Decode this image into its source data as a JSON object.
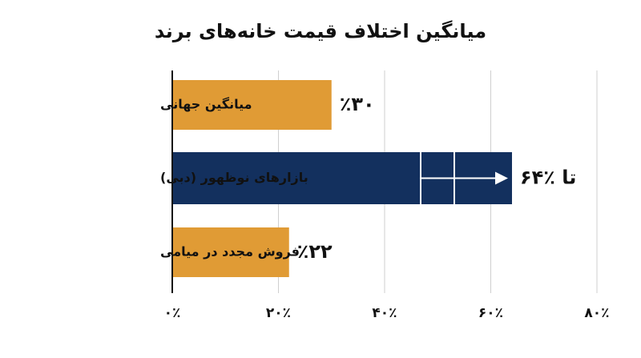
{
  "chart_data": {
    "type": "barh",
    "title": "میانگین اختلاف قیمت خانه‌های برند",
    "categories": [
      "میانگین جهانی",
      "بازارهای نوظهور (دبی)",
      "فروش مجدد در میامی"
    ],
    "values": [
      30,
      64,
      22
    ],
    "value_labels": [
      "٪۳۰",
      "تا ٪۶۴",
      "٪۲۲"
    ],
    "colors": [
      "#e09b35",
      "#13305e",
      "#e09b35"
    ],
    "xlim": [
      0,
      80
    ],
    "xticks": [
      {
        "value": 0,
        "label": "۰٪"
      },
      {
        "value": 20,
        "label": "۲۰٪"
      },
      {
        "value": 40,
        "label": "۴۰٪"
      },
      {
        "value": 60,
        "label": "۶۰٪"
      },
      {
        "value": 80,
        "label": "۸۰٪"
      }
    ],
    "grid": true
  }
}
